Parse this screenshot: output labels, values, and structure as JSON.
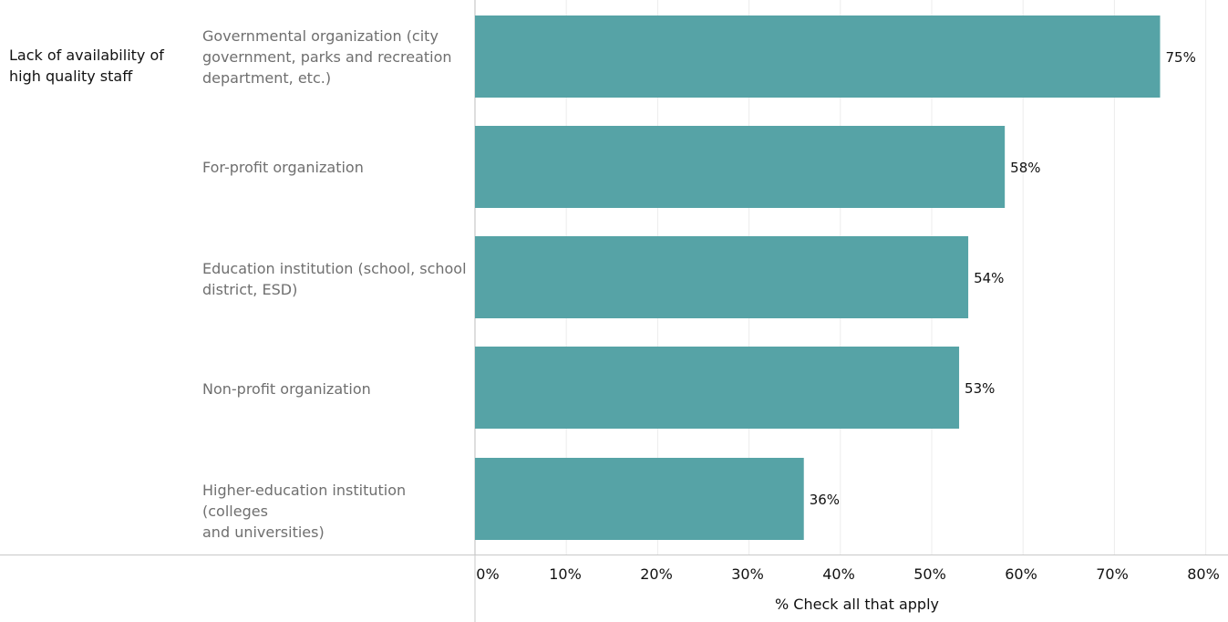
{
  "chart_data": {
    "type": "bar",
    "orientation": "horizontal",
    "row_header": "Lack of availability of high quality staff",
    "categories": [
      "Governmental organization (city\ngovernment, parks and recreation\ndepartment, etc.)",
      "For-profit organization",
      "Education institution (school, school\ndistrict, ESD)",
      "Non-profit organization",
      "Higher-education institution (colleges\nand universities)"
    ],
    "values": [
      75,
      58,
      54,
      53,
      36
    ],
    "data_labels": [
      "75%",
      "58%",
      "54%",
      "53%",
      "36%"
    ],
    "xlabel": "% Check all that apply",
    "xlim": [
      0,
      80
    ],
    "x_ticks": [
      "0%",
      "10%",
      "20%",
      "30%",
      "40%",
      "50%",
      "60%",
      "70%",
      "80%"
    ],
    "grid": true,
    "bar_color": "#56a3a6"
  }
}
